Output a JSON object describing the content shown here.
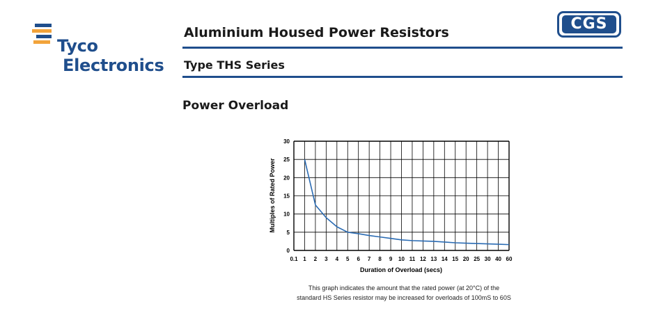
{
  "header": {
    "logo": {
      "line1": "Tyco",
      "line2": "Electronics",
      "icon": "tyco-logo-icon"
    },
    "title": "Aluminium Housed Power Resistors",
    "subtitle": "Type THS Series",
    "badge": "CGS",
    "brand_color": "#1f4e8c",
    "logo_accent": "#f2a33a"
  },
  "section": {
    "title": "Power Overload"
  },
  "chart_data": {
    "type": "line",
    "xlabel": "Duration of Overload (secs)",
    "ylabel": "Multiples of Rated Power",
    "ylim": [
      0,
      30
    ],
    "yticks": [
      "0",
      "5",
      "10",
      "15",
      "20",
      "25",
      "30"
    ],
    "x_categories": [
      "0.1",
      "1",
      "2",
      "3",
      "4",
      "5",
      "6",
      "7",
      "8",
      "9",
      "10",
      "11",
      "12",
      "13",
      "14",
      "15",
      "20",
      "25",
      "30",
      "40",
      "60"
    ],
    "grid": true,
    "series": [
      {
        "color": "#2a6bb3",
        "x": [
          "1",
          "2",
          "3",
          "4",
          "5",
          "6",
          "7",
          "8",
          "9",
          "10",
          "11",
          "12",
          "13",
          "14",
          "15",
          "20",
          "25",
          "30",
          "40",
          "60"
        ],
        "values": [
          25,
          12.5,
          9,
          6.5,
          5,
          4.6,
          4.1,
          3.7,
          3.3,
          2.9,
          2.7,
          2.6,
          2.5,
          2.3,
          2.1,
          2.0,
          1.9,
          1.8,
          1.7,
          1.6
        ]
      }
    ]
  },
  "caption": {
    "line1": "This graph indicates the amount that the rated power (at 20°C) of the",
    "line2": "standard HS Series resistor may be increased for overloads of 100mS to 60S"
  }
}
